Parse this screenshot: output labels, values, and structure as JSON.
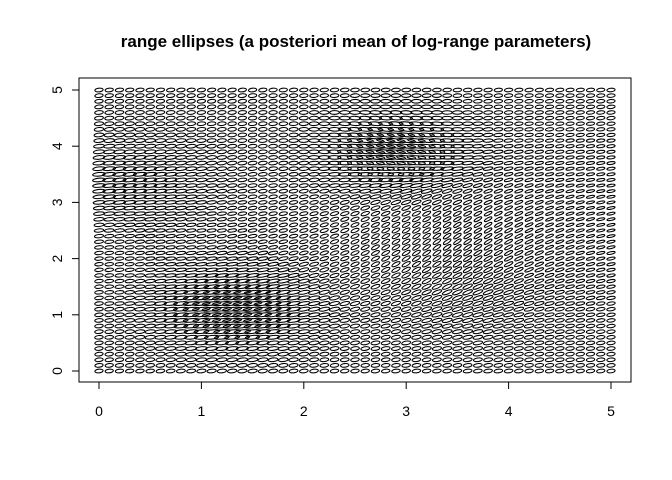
{
  "chart_data": {
    "type": "scatter",
    "glyph": "ellipse",
    "title": "range ellipses (a posteriori mean of log-range parameters)",
    "xlabel": "",
    "ylabel": "",
    "xlim": [
      0,
      5
    ],
    "ylim": [
      0,
      5
    ],
    "x_ticks": [
      0,
      1,
      2,
      3,
      4,
      5
    ],
    "y_ticks": [
      0,
      1,
      2,
      3,
      4,
      5
    ],
    "grid": false,
    "grid_points": {
      "x_start": 0,
      "x_end": 5,
      "x_step": 0.1,
      "y_start": 0,
      "y_end": 5,
      "y_step": 0.1
    },
    "ellipse_color": "#000000",
    "ellipse_scale": 0.04
  }
}
